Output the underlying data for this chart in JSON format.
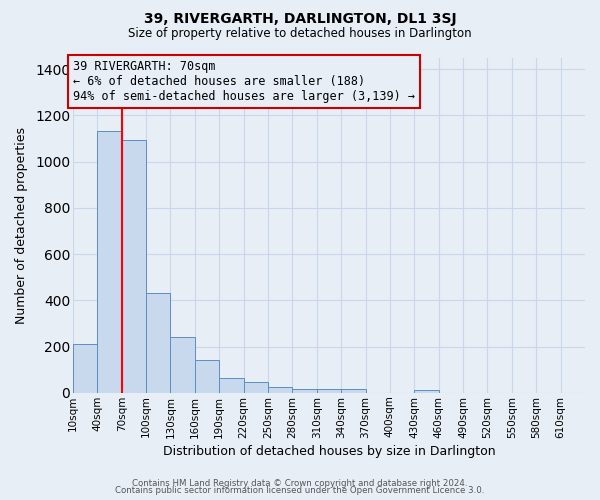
{
  "title": "39, RIVERGARTH, DARLINGTON, DL1 3SJ",
  "subtitle": "Size of property relative to detached houses in Darlington",
  "xlabel": "Distribution of detached houses by size in Darlington",
  "ylabel": "Number of detached properties",
  "footer_lines": [
    "Contains HM Land Registry data © Crown copyright and database right 2024.",
    "Contains public sector information licensed under the Open Government Licence 3.0."
  ],
  "bin_labels": [
    "10sqm",
    "40sqm",
    "70sqm",
    "100sqm",
    "130sqm",
    "160sqm",
    "190sqm",
    "220sqm",
    "250sqm",
    "280sqm",
    "310sqm",
    "340sqm",
    "370sqm",
    "400sqm",
    "430sqm",
    "460sqm",
    "490sqm",
    "520sqm",
    "550sqm",
    "580sqm",
    "610sqm"
  ],
  "bar_values": [
    210,
    1130,
    1095,
    430,
    240,
    140,
    63,
    48,
    25,
    15,
    15,
    15,
    0,
    0,
    12,
    0,
    0,
    0,
    0,
    0
  ],
  "bar_color": "#c9d9ed",
  "bar_edge_color": "#5b8ec4",
  "grid_color": "#c8d8ea",
  "background_color": "#e8eef6",
  "red_line_x": 70,
  "annotation_text": "39 RIVERGARTH: 70sqm\n← 6% of detached houses are smaller (188)\n94% of semi-detached houses are larger (3,139) →",
  "annotation_box_edge": "#cc0000",
  "ylim": [
    0,
    1450
  ],
  "yticks": [
    0,
    200,
    400,
    600,
    800,
    1000,
    1200,
    1400
  ]
}
